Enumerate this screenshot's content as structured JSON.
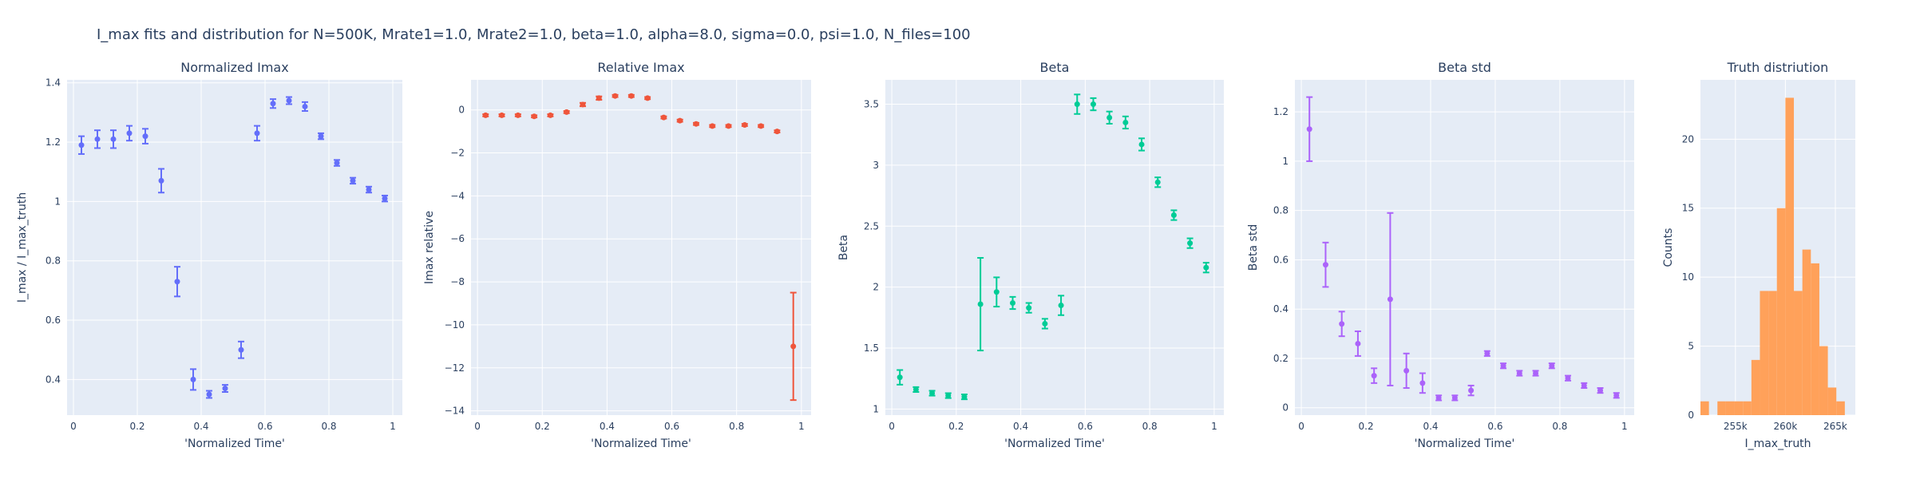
{
  "figure": {
    "title": "I_max fits and distribution for N=500K, Mrate1=1.0, Mrate2=1.0, beta=1.0, alpha=8.0, sigma=0.0,  psi=1.0, N_files=100"
  },
  "colors": {
    "plot_bg": "#e5ecf6",
    "grid": "#ffffff",
    "text": "#2a3f5f"
  },
  "chart_data": [
    {
      "type": "scatter",
      "title": "Normalized Imax",
      "xlabel": "'Normalized Time'",
      "ylabel": "I_max / I_max_truth",
      "color": "#636efa",
      "xlim": [
        -0.02,
        1.03
      ],
      "ylim": [
        0.28,
        1.41
      ],
      "xticks": [
        0,
        0.2,
        0.4,
        0.6,
        0.8,
        1
      ],
      "xticklabels": [
        "0",
        "0.2",
        "0.4",
        "0.6",
        "0.8",
        "1"
      ],
      "yticks": [
        0.4,
        0.6,
        0.8,
        1,
        1.2,
        1.4
      ],
      "yticklabels": [
        "0.4",
        "0.6",
        "0.8",
        "1",
        "1.2",
        "1.4"
      ],
      "x": [
        0.025,
        0.075,
        0.125,
        0.175,
        0.225,
        0.275,
        0.325,
        0.375,
        0.425,
        0.475,
        0.525,
        0.575,
        0.625,
        0.675,
        0.725,
        0.775,
        0.825,
        0.875,
        0.925,
        0.975
      ],
      "y": [
        1.19,
        1.21,
        1.21,
        1.23,
        1.22,
        1.07,
        0.73,
        0.4,
        0.35,
        0.37,
        0.5,
        1.23,
        1.33,
        1.34,
        1.32,
        1.22,
        1.13,
        1.07,
        1.04,
        1.01
      ],
      "err": [
        0.03,
        0.03,
        0.03,
        0.025,
        0.025,
        0.04,
        0.05,
        0.035,
        0.012,
        0.012,
        0.028,
        0.025,
        0.015,
        0.012,
        0.015,
        0.01,
        0.01,
        0.01,
        0.01,
        0.01
      ]
    },
    {
      "type": "scatter",
      "title": "Relative Imax",
      "xlabel": "'Normalized Time'",
      "ylabel": "Imax relative",
      "color": "#ef553b",
      "xlim": [
        -0.02,
        1.03
      ],
      "ylim": [
        -14.2,
        1.4
      ],
      "xticks": [
        0,
        0.2,
        0.4,
        0.6,
        0.8,
        1
      ],
      "xticklabels": [
        "0",
        "0.2",
        "0.4",
        "0.6",
        "0.8",
        "1"
      ],
      "yticks": [
        0,
        -2,
        -4,
        -6,
        -8,
        -10,
        -12,
        -14
      ],
      "yticklabels": [
        "0",
        "−2",
        "−4",
        "−6",
        "−8",
        "−10",
        "−12",
        "−14"
      ],
      "x": [
        0.025,
        0.075,
        0.125,
        0.175,
        0.225,
        0.275,
        0.325,
        0.375,
        0.425,
        0.475,
        0.525,
        0.575,
        0.625,
        0.675,
        0.725,
        0.775,
        0.825,
        0.875,
        0.925,
        0.975
      ],
      "y": [
        -0.25,
        -0.25,
        -0.25,
        -0.3,
        -0.25,
        -0.1,
        0.25,
        0.55,
        0.65,
        0.65,
        0.55,
        -0.35,
        -0.5,
        -0.65,
        -0.75,
        -0.75,
        -0.7,
        -0.75,
        -1.0,
        -11.0
      ],
      "err": [
        0.05,
        0.05,
        0.05,
        0.05,
        0.05,
        0.05,
        0.08,
        0.08,
        0.05,
        0.05,
        0.05,
        0.05,
        0.05,
        0.05,
        0.05,
        0.05,
        0.05,
        0.05,
        0.05,
        2.5
      ]
    },
    {
      "type": "scatter",
      "title": "Beta",
      "xlabel": "'Normalized Time'",
      "ylabel": "Beta",
      "color": "#00cc96",
      "xlim": [
        -0.02,
        1.03
      ],
      "ylim": [
        0.95,
        3.7
      ],
      "xticks": [
        0,
        0.2,
        0.4,
        0.6,
        0.8,
        1
      ],
      "xticklabels": [
        "0",
        "0.2",
        "0.4",
        "0.6",
        "0.8",
        "1"
      ],
      "yticks": [
        1,
        1.5,
        2,
        2.5,
        3,
        3.5
      ],
      "yticklabels": [
        "1",
        "1.5",
        "2",
        "2.5",
        "3",
        "3.5"
      ],
      "x": [
        0.025,
        0.075,
        0.125,
        0.175,
        0.225,
        0.275,
        0.325,
        0.375,
        0.425,
        0.475,
        0.525,
        0.575,
        0.625,
        0.675,
        0.725,
        0.775,
        0.825,
        0.875,
        0.925,
        0.975
      ],
      "y": [
        1.26,
        1.16,
        1.13,
        1.11,
        1.1,
        1.86,
        1.96,
        1.87,
        1.83,
        1.7,
        1.85,
        3.5,
        3.5,
        3.39,
        3.35,
        3.17,
        2.86,
        2.59,
        2.36,
        2.16
      ],
      "err": [
        0.06,
        0.02,
        0.02,
        0.02,
        0.02,
        0.38,
        0.12,
        0.05,
        0.04,
        0.04,
        0.08,
        0.08,
        0.05,
        0.05,
        0.05,
        0.05,
        0.04,
        0.04,
        0.04,
        0.04
      ]
    },
    {
      "type": "scatter",
      "title": "Beta std",
      "xlabel": "'Normalized Time'",
      "ylabel": "Beta std",
      "color": "#ab63fa",
      "xlim": [
        -0.02,
        1.03
      ],
      "ylim": [
        -0.03,
        1.33
      ],
      "xticks": [
        0,
        0.2,
        0.4,
        0.6,
        0.8,
        1
      ],
      "xticklabels": [
        "0",
        "0.2",
        "0.4",
        "0.6",
        "0.8",
        "1"
      ],
      "yticks": [
        0,
        0.2,
        0.4,
        0.6,
        0.8,
        1,
        1.2
      ],
      "yticklabels": [
        "0",
        "0.2",
        "0.4",
        "0.6",
        "0.8",
        "1",
        "1.2"
      ],
      "x": [
        0.025,
        0.075,
        0.125,
        0.175,
        0.225,
        0.275,
        0.325,
        0.375,
        0.425,
        0.475,
        0.525,
        0.575,
        0.625,
        0.675,
        0.725,
        0.775,
        0.825,
        0.875,
        0.925,
        0.975
      ],
      "y": [
        1.13,
        0.58,
        0.34,
        0.26,
        0.13,
        0.44,
        0.15,
        0.1,
        0.04,
        0.04,
        0.07,
        0.22,
        0.17,
        0.14,
        0.14,
        0.17,
        0.12,
        0.09,
        0.07,
        0.05
      ],
      "err": [
        0.13,
        0.09,
        0.05,
        0.05,
        0.03,
        0.35,
        0.07,
        0.04,
        0.01,
        0.01,
        0.02,
        0.01,
        0.01,
        0.01,
        0.01,
        0.01,
        0.01,
        0.01,
        0.01,
        0.01
      ]
    },
    {
      "type": "bar",
      "title": "Truth distriution",
      "xlabel": "I_max_truth",
      "ylabel": "Counts",
      "color": "#ffa15a",
      "xlim": [
        251500,
        267000
      ],
      "ylim": [
        0,
        24.3
      ],
      "xticks": [
        255000,
        260000,
        265000
      ],
      "xticklabels": [
        "255k",
        "260k",
        "265k"
      ],
      "yticks": [
        0,
        5,
        10,
        15,
        20
      ],
      "yticklabels": [
        "0",
        "5",
        "10",
        "15",
        "20"
      ],
      "bin_width": 850,
      "bin_starts": [
        251500,
        252350,
        253200,
        254050,
        254900,
        255750,
        256600,
        257450,
        258300,
        259150,
        260000,
        260850,
        261700,
        262550,
        263400,
        264250,
        265100,
        265950
      ],
      "counts": [
        1,
        0,
        1,
        1,
        1,
        1,
        4,
        9,
        9,
        15,
        23,
        9,
        12,
        11,
        5,
        2,
        1,
        0
      ]
    }
  ]
}
